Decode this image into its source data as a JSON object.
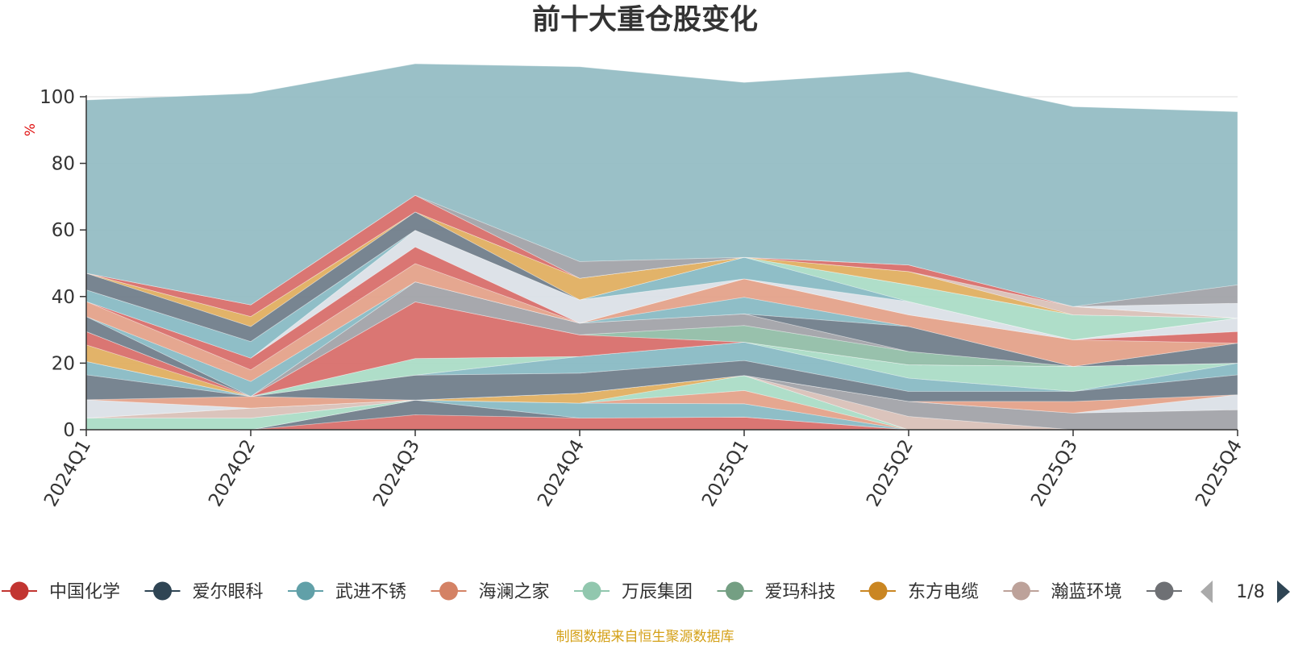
{
  "chart_data": {
    "type": "area",
    "stacked": true,
    "title": "前十大重仓股变化",
    "ylabel": "%",
    "ylim": [
      0,
      100
    ],
    "yticks": [
      0,
      20,
      40,
      60,
      80,
      100
    ],
    "grid": true,
    "categories": [
      "2024Q1",
      "2024Q2",
      "2024Q3",
      "2024Q4",
      "2025Q1",
      "2025Q2",
      "2025Q3",
      "2025Q4"
    ],
    "series": [
      {
        "values": [
          0.0,
          0.0,
          4.5,
          3.5,
          3.8,
          0.0,
          0.0,
          0.0
        ],
        "color": "#d76a67"
      },
      {
        "values": [
          0.0,
          0.0,
          4.4,
          0.0,
          0.0,
          0.0,
          0.0,
          0.0
        ],
        "color": "#6c7b88"
      },
      {
        "values": [
          0.0,
          0.0,
          0.0,
          4.5,
          4.0,
          0.0,
          0.0,
          0.0
        ],
        "color": "#86b8c2"
      },
      {
        "values": [
          0.0,
          0.0,
          0.0,
          0.0,
          4.0,
          0.0,
          0.0,
          0.0
        ],
        "color": "#e3a087"
      },
      {
        "values": [
          3.5,
          3.5,
          0.0,
          0.0,
          4.5,
          0.0,
          0.0,
          0.0
        ],
        "color": "#a8dbc4"
      },
      {
        "values": [
          0.0,
          0.0,
          0.0,
          3.0,
          0.0,
          0.0,
          0.0,
          0.0
        ],
        "color": "#e0ad5c"
      },
      {
        "values": [
          0.0,
          3.0,
          0.0,
          0.0,
          0.0,
          4.0,
          0.0,
          0.0
        ],
        "color": "#d8bfb6"
      },
      {
        "values": [
          0.0,
          0.0,
          0.0,
          0.0,
          0.0,
          4.5,
          5.0,
          6.0
        ],
        "color": "#9fa1a6"
      },
      {
        "values": [
          5.5,
          0.0,
          0.0,
          0.0,
          0.0,
          0.0,
          0.0,
          4.5
        ],
        "color": "#dadfe6"
      },
      {
        "values": [
          0.0,
          3.5,
          0.0,
          0.0,
          0.0,
          0.0,
          3.5,
          0.0
        ],
        "color": "#e3a087"
      },
      {
        "values": [
          7.5,
          0.0,
          7.5,
          6.0,
          4.5,
          3.0,
          3.0,
          6.0
        ],
        "color": "#6c7b88"
      },
      {
        "values": [
          4.0,
          0.0,
          0.0,
          5.0,
          5.5,
          4.0,
          0.0,
          3.5
        ],
        "color": "#86b8c2"
      },
      {
        "values": [
          0.0,
          0.0,
          5.0,
          0.0,
          0.0,
          4.0,
          7.5,
          0.0
        ],
        "color": "#a8dbc4"
      },
      {
        "values": [
          5.0,
          0.0,
          0.0,
          0.0,
          0.0,
          0.0,
          0.0,
          0.0
        ],
        "color": "#e0ad5c"
      },
      {
        "values": [
          4.0,
          0.0,
          17.0,
          6.5,
          0.0,
          0.0,
          0.0,
          0.0
        ],
        "color": "#d76a67"
      },
      {
        "values": [
          0.0,
          0.0,
          0.0,
          0.0,
          5.0,
          4.0,
          0.0,
          0.0
        ],
        "color": "#8fbca5"
      },
      {
        "values": [
          0.0,
          0.0,
          6.0,
          3.5,
          3.5,
          0.0,
          0.0,
          0.0
        ],
        "color": "#9fa1a6"
      },
      {
        "values": [
          4.5,
          0.0,
          0.0,
          0.0,
          0.0,
          7.5,
          0.0,
          6.0
        ],
        "color": "#6c7b88"
      },
      {
        "values": [
          0.0,
          4.5,
          0.0,
          0.0,
          5.0,
          0.0,
          0.0,
          0.0
        ],
        "color": "#86b8c2"
      },
      {
        "values": [
          4.5,
          3.5,
          5.5,
          0.0,
          5.5,
          3.5,
          8.0,
          0.0
        ],
        "color": "#e3a087"
      },
      {
        "values": [
          0.0,
          3.5,
          5.0,
          0.0,
          0.0,
          0.0,
          0.0,
          3.5
        ],
        "color": "#d76a67"
      },
      {
        "values": [
          0.0,
          0.0,
          5.0,
          7.0,
          0.0,
          4.0,
          0.0,
          4.0
        ],
        "color": "#dadfe6"
      },
      {
        "values": [
          3.5,
          5.0,
          0.0,
          0.0,
          6.5,
          0.0,
          0.0,
          0.0
        ],
        "color": "#86b8c2"
      },
      {
        "values": [
          0.0,
          0.0,
          0.0,
          0.0,
          0.0,
          5.0,
          7.5,
          0.0
        ],
        "color": "#a8dbc4"
      },
      {
        "values": [
          5.0,
          4.5,
          5.5,
          0.0,
          0.0,
          0.0,
          0.0,
          0.0
        ],
        "color": "#6c7b88"
      },
      {
        "values": [
          0.0,
          3.0,
          0.0,
          6.5,
          0.0,
          4.0,
          0.0,
          0.0
        ],
        "color": "#e0ad5c"
      },
      {
        "values": [
          0.0,
          0.0,
          0.0,
          0.0,
          0.0,
          0.0,
          2.5,
          0.0
        ],
        "color": "#d8bfb6"
      },
      {
        "values": [
          0.0,
          3.5,
          5.0,
          0.0,
          0.0,
          2.0,
          0.0,
          0.0
        ],
        "color": "#d76a67"
      },
      {
        "values": [
          0.0,
          0.0,
          0.0,
          0.0,
          0.0,
          0.0,
          0.0,
          4.5
        ],
        "color": "#dadfe6"
      },
      {
        "values": [
          0.0,
          0.0,
          0.0,
          5.0,
          0.0,
          0.0,
          0.0,
          5.5
        ],
        "color": "#9fa1a6"
      },
      {
        "values": [
          52.0,
          63.5,
          39.5,
          58.5,
          52.5,
          58.0,
          60.0,
          52.0
        ],
        "color": "#91bbc2"
      }
    ],
    "legend": {
      "position": "bottom",
      "page": "1/8",
      "items": [
        {
          "name": "中国化学",
          "color": "#c23531"
        },
        {
          "name": "爱尔眼科",
          "color": "#2f4554"
        },
        {
          "name": "武进不锈",
          "color": "#61a0a8"
        },
        {
          "name": "海澜之家",
          "color": "#d48265"
        },
        {
          "name": "万辰集团",
          "color": "#91c7ae"
        },
        {
          "name": "爱玛科技",
          "color": "#749f83"
        },
        {
          "name": "东方电缆",
          "color": "#ca8622"
        },
        {
          "name": "瀚蓝环境",
          "color": "#bda29a"
        },
        {
          "name": "",
          "color": "#6e7074"
        }
      ]
    },
    "source": "制图数据来自恒生聚源数据库"
  }
}
